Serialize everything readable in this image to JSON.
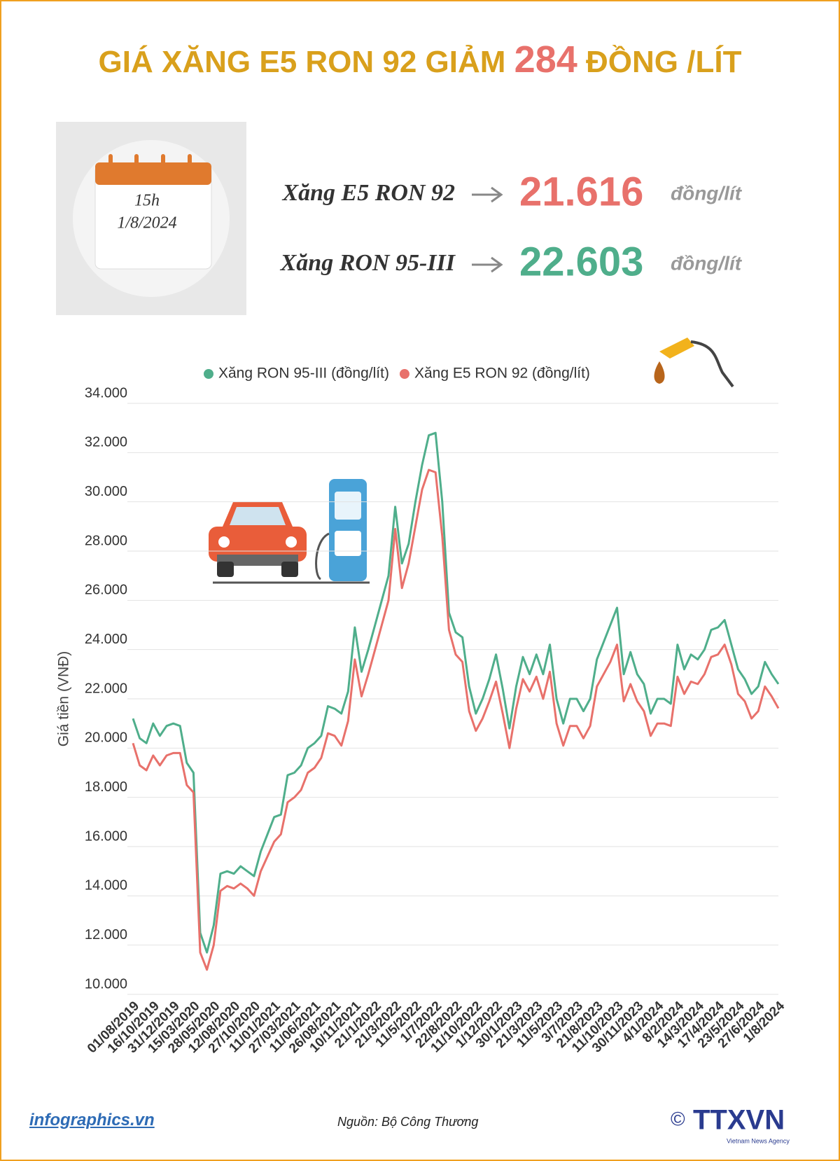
{
  "header": {
    "title_start": "GIÁ XĂNG E5 RON 92 GIẢM",
    "title_number": 284,
    "title_end": "ĐỒNG /LÍT"
  },
  "calendar": {
    "time": "15h",
    "date": "1/8/2024"
  },
  "prices": [
    {
      "name": "Xăng E5 RON 92",
      "price": "21.616",
      "unit": "đồng/lít",
      "color": "#e8716b"
    },
    {
      "name": "Xăng RON 95-III",
      "price": "22.603",
      "unit": "đồng/lít",
      "color": "#4fae8b"
    }
  ],
  "chart_data": {
    "type": "line",
    "ylabel": "Giá tiền (VNĐ)",
    "categories": [
      "01/08/2019",
      null,
      null,
      "16/10/2019",
      null,
      null,
      "31/12/2019",
      null,
      null,
      "15/03/2020",
      null,
      null,
      "28/05/2020",
      null,
      null,
      "12/08/2020",
      null,
      null,
      "27/10/2020",
      null,
      null,
      "11/01/2021",
      null,
      null,
      "27/03/2021",
      null,
      null,
      "11/06/2021",
      null,
      null,
      "26/08/2021",
      null,
      null,
      "10/11/2021",
      null,
      null,
      "21/1/2022",
      null,
      null,
      "21/3/2022",
      null,
      null,
      "11/5/2022",
      null,
      null,
      "1/7/2022",
      null,
      null,
      "22/8/2022",
      null,
      null,
      "11/10/2022",
      null,
      null,
      "1/12/2022",
      null,
      null,
      "30/1/2023",
      null,
      null,
      "21/3/2023",
      null,
      null,
      "11/5/2023",
      null,
      null,
      "3/7/2023",
      null,
      null,
      "21/8/2023",
      null,
      null,
      "11/10/2023",
      null,
      null,
      "30/11/2023",
      null,
      null,
      "4/1/2024",
      null,
      null,
      "8/2/2024",
      null,
      null,
      "14/3/2024",
      null,
      null,
      "17/4/2024",
      null,
      null,
      "23/5/2024",
      null,
      null,
      "27/6/2024",
      null,
      null,
      "1/8/2024"
    ],
    "series": [
      {
        "name": "Xăng RON 95-III (đồng/lít)",
        "color": "#4fae8b",
        "values": [
          21200,
          20400,
          20200,
          21000,
          20500,
          20900,
          21000,
          20900,
          19400,
          19000,
          12500,
          11700,
          12800,
          14900,
          15000,
          14900,
          15200,
          15000,
          14800,
          15800,
          16500,
          17200,
          17300,
          18900,
          19000,
          19300,
          20000,
          20200,
          20500,
          21700,
          21600,
          21400,
          22300,
          24900,
          23100,
          24000,
          25000,
          26000,
          27000,
          29800,
          27500,
          28300,
          30000,
          31500,
          32700,
          32800,
          30000,
          25500,
          24700,
          24500,
          22500,
          21400,
          22000,
          22800,
          23800,
          22400,
          20800,
          22500,
          23700,
          23000,
          23800,
          23000,
          24200,
          22000,
          21000,
          22000,
          22000,
          21500,
          22000,
          23600,
          24300,
          25000,
          25700,
          23000,
          23900,
          23000,
          22600,
          21400,
          22000,
          22000,
          21800,
          24200,
          23200,
          23800,
          23600,
          24000,
          24800,
          24900,
          25200,
          24200,
          23200,
          22800,
          22200,
          22500,
          23500,
          23000,
          22603
        ]
      },
      {
        "name": "Xăng E5 RON 92 (đồng/lít)",
        "color": "#e8716b",
        "values": [
          20200,
          19300,
          19100,
          19700,
          19300,
          19700,
          19800,
          19800,
          18500,
          18200,
          11700,
          11000,
          12000,
          14200,
          14400,
          14300,
          14500,
          14300,
          14000,
          15000,
          15600,
          16200,
          16500,
          17800,
          18000,
          18300,
          19000,
          19200,
          19600,
          20600,
          20500,
          20100,
          21100,
          23600,
          22100,
          23000,
          24000,
          25000,
          26000,
          28900,
          26500,
          27500,
          29000,
          30500,
          31300,
          31200,
          28600,
          24800,
          23800,
          23500,
          21500,
          20700,
          21200,
          21900,
          22700,
          21400,
          20000,
          21600,
          22800,
          22300,
          22900,
          22000,
          23100,
          21000,
          20100,
          20900,
          20900,
          20400,
          20900,
          22500,
          23000,
          23500,
          24200,
          21900,
          22600,
          21900,
          21500,
          20500,
          21000,
          21000,
          20900,
          22900,
          22200,
          22700,
          22600,
          23000,
          23700,
          23800,
          24200,
          23400,
          22200,
          21900,
          21200,
          21500,
          22500,
          22100,
          21616
        ]
      }
    ],
    "ylim": [
      10000,
      34000
    ],
    "yticks": [
      {
        "value": 10000,
        "label": "10.000"
      },
      {
        "value": 12000,
        "label": "12.000"
      },
      {
        "value": 14000,
        "label": "14.000"
      },
      {
        "value": 16000,
        "label": "16.000"
      },
      {
        "value": 18000,
        "label": "18.000"
      },
      {
        "value": 20000,
        "label": "20.000"
      },
      {
        "value": 22000,
        "label": "22.000"
      },
      {
        "value": 24000,
        "label": "24.000"
      },
      {
        "value": 26000,
        "label": "26.000"
      },
      {
        "value": 28000,
        "label": "28.000"
      },
      {
        "value": 30000,
        "label": "30.000"
      },
      {
        "value": 32000,
        "label": "32.000"
      },
      {
        "value": 34000,
        "label": "34.000"
      }
    ],
    "grid": true
  },
  "footer": {
    "site": "infographics.vn",
    "source": "Nguồn: Bộ Công Thương",
    "copyright": "©",
    "agency": "TTXVN",
    "agency_sub": "Vietnam News Agency"
  }
}
